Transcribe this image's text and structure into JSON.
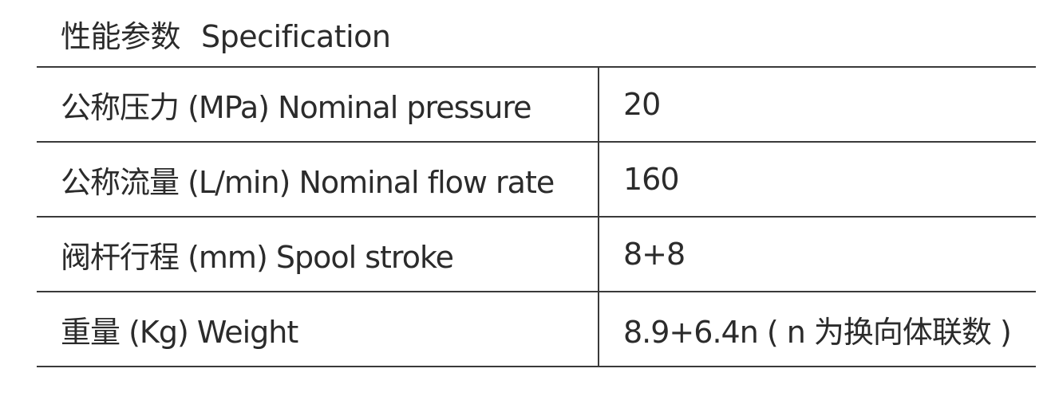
{
  "title": {
    "zh": "性能参数",
    "en": "Specification"
  },
  "rows": [
    {
      "parameter": "公称压力 (MPa) Nominal pressure",
      "value": "20"
    },
    {
      "parameter": "公称流量 (L/min) Nominal flow rate",
      "value": "160"
    },
    {
      "parameter": "阀杆行程 (mm) Spool stroke",
      "value": "8+8"
    },
    {
      "parameter": "重量 (Kg) Weight",
      "value": "8.9+6.4n ( n 为换向体联数 )"
    }
  ]
}
